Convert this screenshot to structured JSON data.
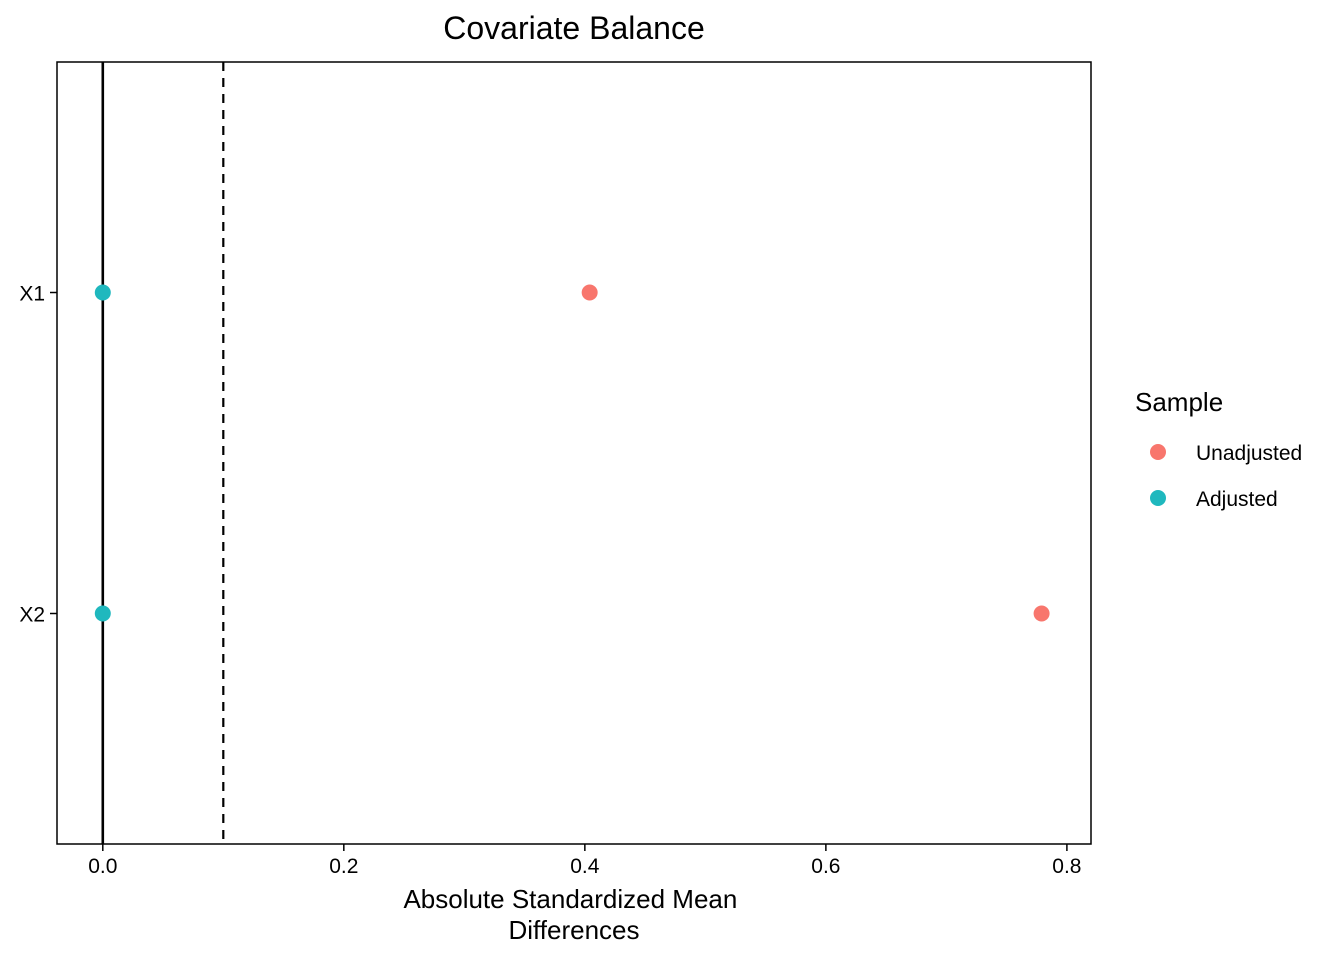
{
  "chart_data": {
    "type": "scatter",
    "title": "Covariate Balance",
    "xlabel_lines": [
      "Absolute Standardized Mean",
      "Differences"
    ],
    "ylabel": "",
    "xlim": [
      -0.038,
      0.82
    ],
    "x_ticks": [
      0.0,
      0.2,
      0.4,
      0.6,
      0.8
    ],
    "x_tick_labels": [
      "0.0",
      "0.2",
      "0.4",
      "0.6",
      "0.8"
    ],
    "categories": [
      "X1",
      "X2"
    ],
    "reference_lines": [
      {
        "x": 0.0,
        "style": "solid"
      },
      {
        "x": 0.1,
        "style": "dashed"
      }
    ],
    "grid": false,
    "legend": {
      "title": "Sample",
      "position": "right"
    },
    "series": [
      {
        "name": "Unadjusted",
        "color": "#F8766D",
        "values": [
          0.404,
          0.779
        ]
      },
      {
        "name": "Adjusted",
        "color": "#1FB8BE",
        "values": [
          0.0,
          0.0
        ]
      }
    ]
  }
}
